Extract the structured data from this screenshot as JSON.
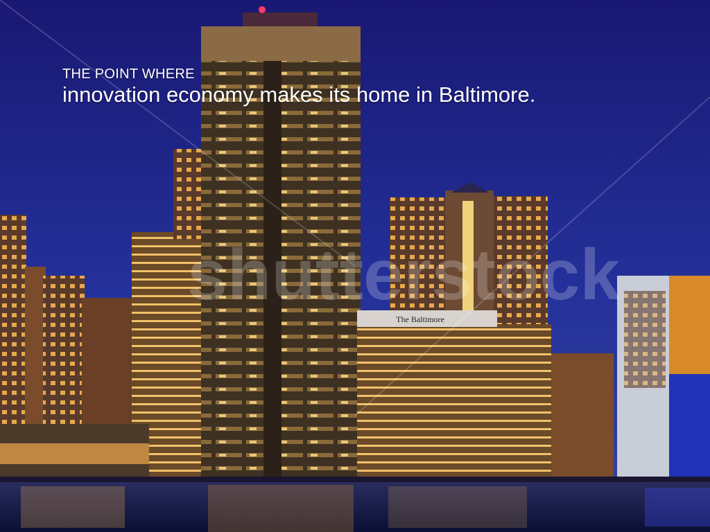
{
  "headline": {
    "kicker": "THE POINT WHERE",
    "main": "innovation economy makes its home in Baltimore."
  },
  "watermark": {
    "text": "shutterstock"
  },
  "sign": {
    "text": "The Baltimore"
  },
  "colors": {
    "sky_top": "#1d1c7a",
    "sky_bottom": "#2a3f9c",
    "water": "#0d1640",
    "light": "#f6b24a"
  }
}
